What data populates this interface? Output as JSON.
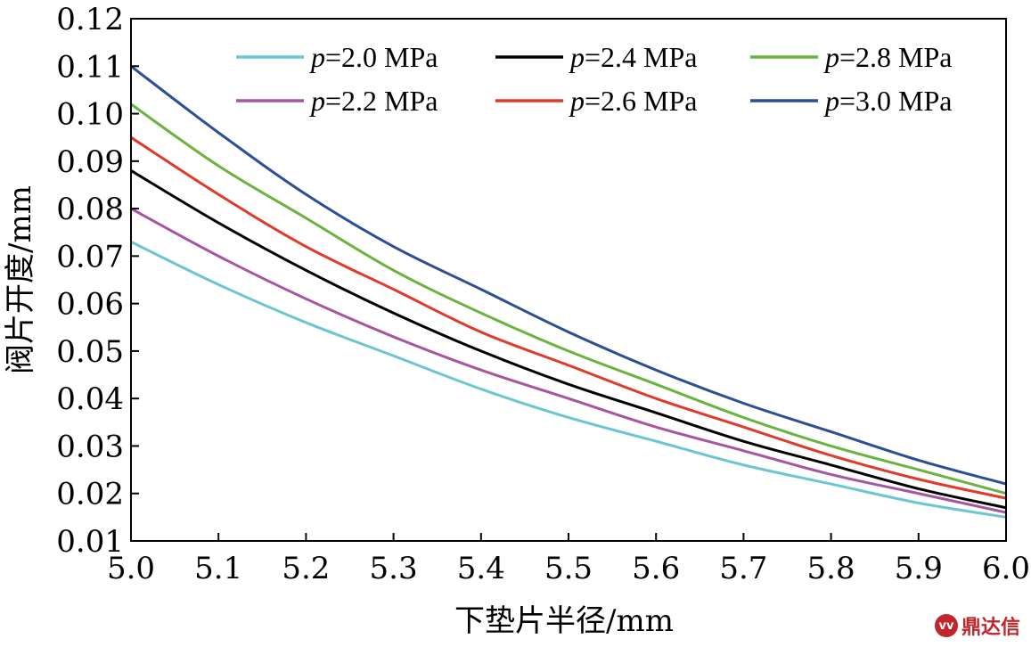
{
  "chart_data": {
    "type": "line",
    "title": "",
    "xlabel": "下垫片半径/mm",
    "ylabel": "阀片开度/mm",
    "xlim": [
      5.0,
      6.0
    ],
    "ylim": [
      0.01,
      0.12
    ],
    "x_ticks": [
      "5.0",
      "5.1",
      "5.2",
      "5.3",
      "5.4",
      "5.5",
      "5.6",
      "5.7",
      "5.8",
      "5.9",
      "6.0"
    ],
    "y_ticks": [
      "0.01",
      "0.02",
      "0.03",
      "0.04",
      "0.05",
      "0.06",
      "0.07",
      "0.08",
      "0.09",
      "0.10",
      "0.11",
      "0.12"
    ],
    "grid": false,
    "legend_position": "top",
    "x": [
      5.0,
      5.1,
      5.2,
      5.3,
      5.4,
      5.5,
      5.6,
      5.7,
      5.8,
      5.9,
      6.0
    ],
    "series": [
      {
        "name": "p=2.0 MPa",
        "color": "#6cc5d2",
        "values": [
          0.073,
          0.064,
          0.056,
          0.049,
          0.042,
          0.036,
          0.031,
          0.026,
          0.022,
          0.018,
          0.015
        ]
      },
      {
        "name": "p=2.2 MPa",
        "color": "#a8559f",
        "values": [
          0.08,
          0.07,
          0.061,
          0.053,
          0.046,
          0.04,
          0.034,
          0.029,
          0.024,
          0.02,
          0.016
        ]
      },
      {
        "name": "p=2.4 MPa",
        "color": "#000000",
        "values": [
          0.088,
          0.077,
          0.067,
          0.058,
          0.05,
          0.043,
          0.037,
          0.031,
          0.026,
          0.021,
          0.017
        ]
      },
      {
        "name": "p=2.6 MPa",
        "color": "#e03a2a",
        "values": [
          0.095,
          0.083,
          0.072,
          0.063,
          0.054,
          0.047,
          0.04,
          0.034,
          0.028,
          0.023,
          0.019
        ]
      },
      {
        "name": "p=2.8 MPa",
        "color": "#6ab33e",
        "values": [
          0.102,
          0.089,
          0.078,
          0.067,
          0.058,
          0.05,
          0.043,
          0.036,
          0.03,
          0.025,
          0.02
        ]
      },
      {
        "name": "p=3.0 MPa",
        "color": "#2c4f94",
        "values": [
          0.11,
          0.096,
          0.083,
          0.072,
          0.063,
          0.054,
          0.046,
          0.039,
          0.033,
          0.027,
          0.022
        ]
      }
    ],
    "legend_layout": [
      [
        "p=2.0 MPa",
        "p=2.4 MPa",
        "p=2.8 MPa"
      ],
      [
        "p=2.2 MPa",
        "p=2.6 MPa",
        "p=3.0 MPa"
      ]
    ]
  },
  "watermark": {
    "logo": "vv",
    "text": "鼎达信"
  }
}
